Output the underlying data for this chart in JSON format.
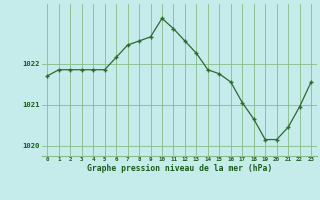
{
  "x": [
    0,
    1,
    2,
    3,
    4,
    5,
    6,
    7,
    8,
    9,
    10,
    11,
    12,
    13,
    14,
    15,
    16,
    17,
    18,
    19,
    20,
    21,
    22,
    23
  ],
  "y": [
    1021.7,
    1021.85,
    1021.85,
    1021.85,
    1021.85,
    1021.85,
    1022.15,
    1022.45,
    1022.55,
    1022.65,
    1023.1,
    1022.85,
    1022.55,
    1022.25,
    1021.85,
    1021.75,
    1021.55,
    1021.05,
    1020.65,
    1020.15,
    1020.15,
    1020.45,
    1020.95,
    1021.55
  ],
  "line_color": "#2d6a2d",
  "marker_color": "#2d6a2d",
  "bg_color": "#c5ecea",
  "grid_color": "#88bb88",
  "xlabel": "Graphe pression niveau de la mer (hPa)",
  "xlabel_color": "#1a5c1a",
  "ytick_labels": [
    "1020",
    "1021",
    "1022"
  ],
  "ytick_values": [
    1020,
    1021,
    1022
  ],
  "ylim": [
    1019.75,
    1023.45
  ],
  "xlim": [
    -0.5,
    23.5
  ],
  "figsize": [
    3.2,
    2.0
  ],
  "dpi": 100
}
